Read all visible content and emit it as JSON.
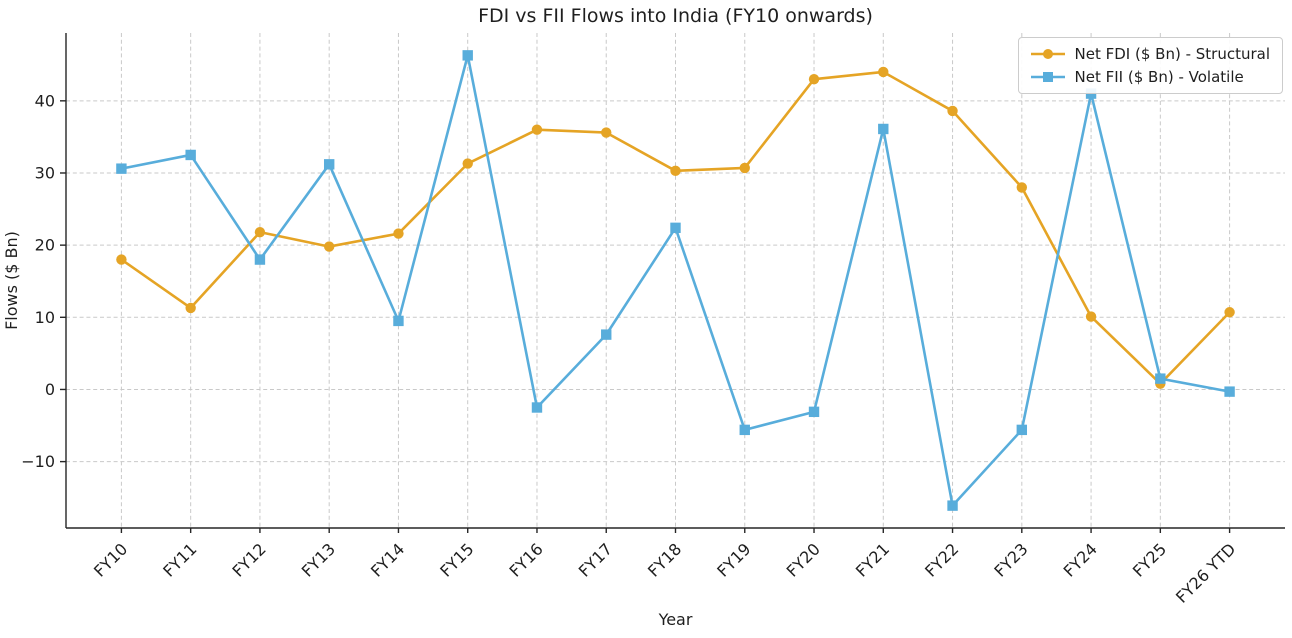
{
  "title": "FDI vs FII Flows into India (FY10 onwards)",
  "chart_data": {
    "type": "line",
    "title": "FDI vs FII Flows into India (FY10 onwards)",
    "xlabel": "Year",
    "ylabel": "Flows ($ Bn)",
    "categories": [
      "FY10",
      "FY11",
      "FY12",
      "FY13",
      "FY14",
      "FY15",
      "FY16",
      "FY17",
      "FY18",
      "FY19",
      "FY20",
      "FY21",
      "FY22",
      "FY23",
      "FY24",
      "FY25",
      "FY26 YTD"
    ],
    "series": [
      {
        "name": "Net FDI ($ Bn) - Structural",
        "marker": "circle",
        "color": "#E5A425",
        "values": [
          18.0,
          11.3,
          21.8,
          19.8,
          21.6,
          31.3,
          36.0,
          35.6,
          30.3,
          30.7,
          43.0,
          44.0,
          38.6,
          28.0,
          10.1,
          0.8,
          10.7
        ]
      },
      {
        "name": "Net FII ($ Bn) - Volatile",
        "marker": "square",
        "color": "#58ADDB",
        "values": [
          30.6,
          32.5,
          18.0,
          31.2,
          9.5,
          46.3,
          -2.5,
          7.6,
          22.4,
          -5.6,
          -3.1,
          36.1,
          -16.1,
          -5.6,
          41.0,
          1.5,
          -0.3
        ]
      }
    ],
    "y_ticks": [
      -10,
      0,
      10,
      20,
      30,
      40
    ],
    "ylim": [
      -19.2,
      49.4
    ],
    "xlim": [
      -0.8,
      16.8
    ],
    "grid": true,
    "grid_style": "dashed",
    "legend_position": "upper right",
    "colors": {
      "grid": "#c9c9c9",
      "spine": "#262626",
      "text": "#1f1f1f"
    }
  }
}
